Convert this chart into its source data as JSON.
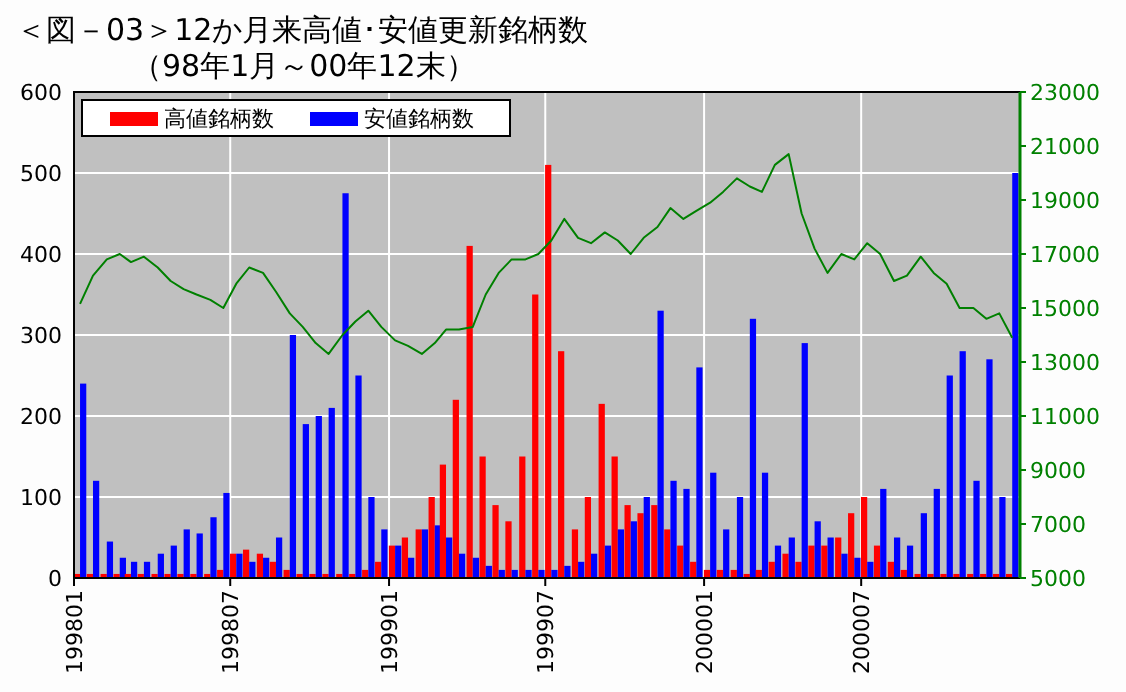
{
  "chart_data": {
    "type": "bar",
    "title": "＜図－03＞12か月来高値･安値更新銘柄数",
    "subtitle": "（98年1月～00年12末）",
    "x": [
      "1998-01-08",
      "1998-01-23",
      "1998-02-08",
      "1998-02-23",
      "1998-03-08",
      "1998-03-23",
      "1998-04-08",
      "1998-04-23",
      "1998-05-08",
      "1998-05-23",
      "1998-06-08",
      "1998-06-23",
      "1998-07-08",
      "1998-07-23",
      "1998-08-08",
      "1998-08-23",
      "1998-09-08",
      "1998-09-23",
      "1998-10-08",
      "1998-10-23",
      "1998-11-08",
      "1998-11-23",
      "1998-12-08",
      "1998-12-23",
      "1999-01-08",
      "1999-01-23",
      "1999-02-08",
      "1999-02-23",
      "1999-03-08",
      "1999-03-23",
      "1999-04-08",
      "1999-04-23",
      "1999-05-08",
      "1999-05-23",
      "1999-06-08",
      "1999-06-23",
      "1999-07-08",
      "1999-07-23",
      "1999-08-08",
      "1999-08-23",
      "1999-09-08",
      "1999-09-23",
      "1999-10-08",
      "1999-10-23",
      "1999-11-08",
      "1999-11-23",
      "1999-12-08",
      "1999-12-23",
      "2000-01-08",
      "2000-01-23",
      "2000-02-08",
      "2000-02-23",
      "2000-03-08",
      "2000-03-23",
      "2000-04-08",
      "2000-04-23",
      "2000-05-08",
      "2000-05-23",
      "2000-06-08",
      "2000-06-23",
      "2000-07-08",
      "2000-07-23",
      "2000-08-08",
      "2000-08-23",
      "2000-09-08",
      "2000-09-23",
      "2000-10-08",
      "2000-10-23",
      "2000-11-08",
      "2000-11-23",
      "2000-12-08",
      "2000-12-23"
    ],
    "xlim": [
      "1998-01-01",
      "2001-01-01"
    ],
    "xticks": [
      {
        "value": "1998-01-01",
        "label": "199801"
      },
      {
        "value": "1998-07-01",
        "label": "199807"
      },
      {
        "value": "1999-01-01",
        "label": "199901"
      },
      {
        "value": "1999-07-01",
        "label": "199907"
      },
      {
        "value": "2000-01-01",
        "label": "200001"
      },
      {
        "value": "2000-07-01",
        "label": "200007"
      }
    ],
    "ylim": [
      0,
      600
    ],
    "yticks": [
      0,
      100,
      200,
      300,
      400,
      500,
      600
    ],
    "y2lim": [
      5000,
      23000
    ],
    "y2ticks": [
      5000,
      7000,
      9000,
      11000,
      13000,
      15000,
      17000,
      19000,
      21000,
      23000
    ],
    "grid": true,
    "legend": "top left",
    "series": [
      {
        "name": "高値銘柄数",
        "color": "#ff0000",
        "values": [
          5,
          5,
          5,
          5,
          5,
          5,
          5,
          5,
          5,
          5,
          5,
          10,
          30,
          35,
          30,
          20,
          10,
          5,
          5,
          5,
          5,
          5,
          10,
          20,
          40,
          50,
          60,
          100,
          140,
          220,
          410,
          150,
          90,
          70,
          150,
          350,
          510,
          280,
          60,
          100,
          215,
          150,
          90,
          80,
          90,
          60,
          40,
          20,
          10,
          10,
          10,
          5,
          10,
          20,
          30,
          20,
          40,
          40,
          50,
          80,
          100,
          40,
          20,
          10,
          5,
          5,
          5,
          5,
          5,
          5,
          5,
          5
        ]
      },
      {
        "name": "安値銘柄数",
        "color": "#0000ff",
        "values": [
          240,
          120,
          45,
          25,
          20,
          20,
          30,
          40,
          60,
          55,
          75,
          105,
          30,
          20,
          25,
          50,
          300,
          190,
          200,
          210,
          475,
          250,
          100,
          60,
          40,
          25,
          60,
          65,
          50,
          30,
          25,
          15,
          10,
          10,
          10,
          10,
          10,
          15,
          20,
          30,
          40,
          60,
          70,
          100,
          330,
          120,
          110,
          260,
          130,
          60,
          100,
          320,
          130,
          40,
          50,
          290,
          70,
          50,
          30,
          25,
          20,
          110,
          50,
          40,
          80,
          110,
          250,
          280,
          120,
          270,
          100,
          500
        ]
      },
      {
        "type": "line",
        "axis": "y2",
        "color": "#008000",
        "values": [
          15150,
          16200,
          16800,
          17000,
          16700,
          16900,
          16500,
          16000,
          15700,
          15500,
          15300,
          15000,
          15900,
          16500,
          16300,
          15600,
          14800,
          14300,
          13700,
          13300,
          14000,
          14500,
          14900,
          14300,
          13800,
          13600,
          13300,
          13700,
          14200,
          14200,
          14300,
          15500,
          16300,
          16800,
          16800,
          17000,
          17500,
          18300,
          17600,
          17400,
          17800,
          17500,
          17000,
          17600,
          18000,
          18700,
          18300,
          18600,
          18900,
          19300,
          19800,
          19500,
          19300,
          20300,
          20700,
          18500,
          17200,
          16300,
          17000,
          16800,
          17400,
          17000,
          16000,
          16200,
          16900,
          16300,
          15900,
          15000,
          15000,
          14600,
          14800,
          13900
        ]
      }
    ]
  }
}
